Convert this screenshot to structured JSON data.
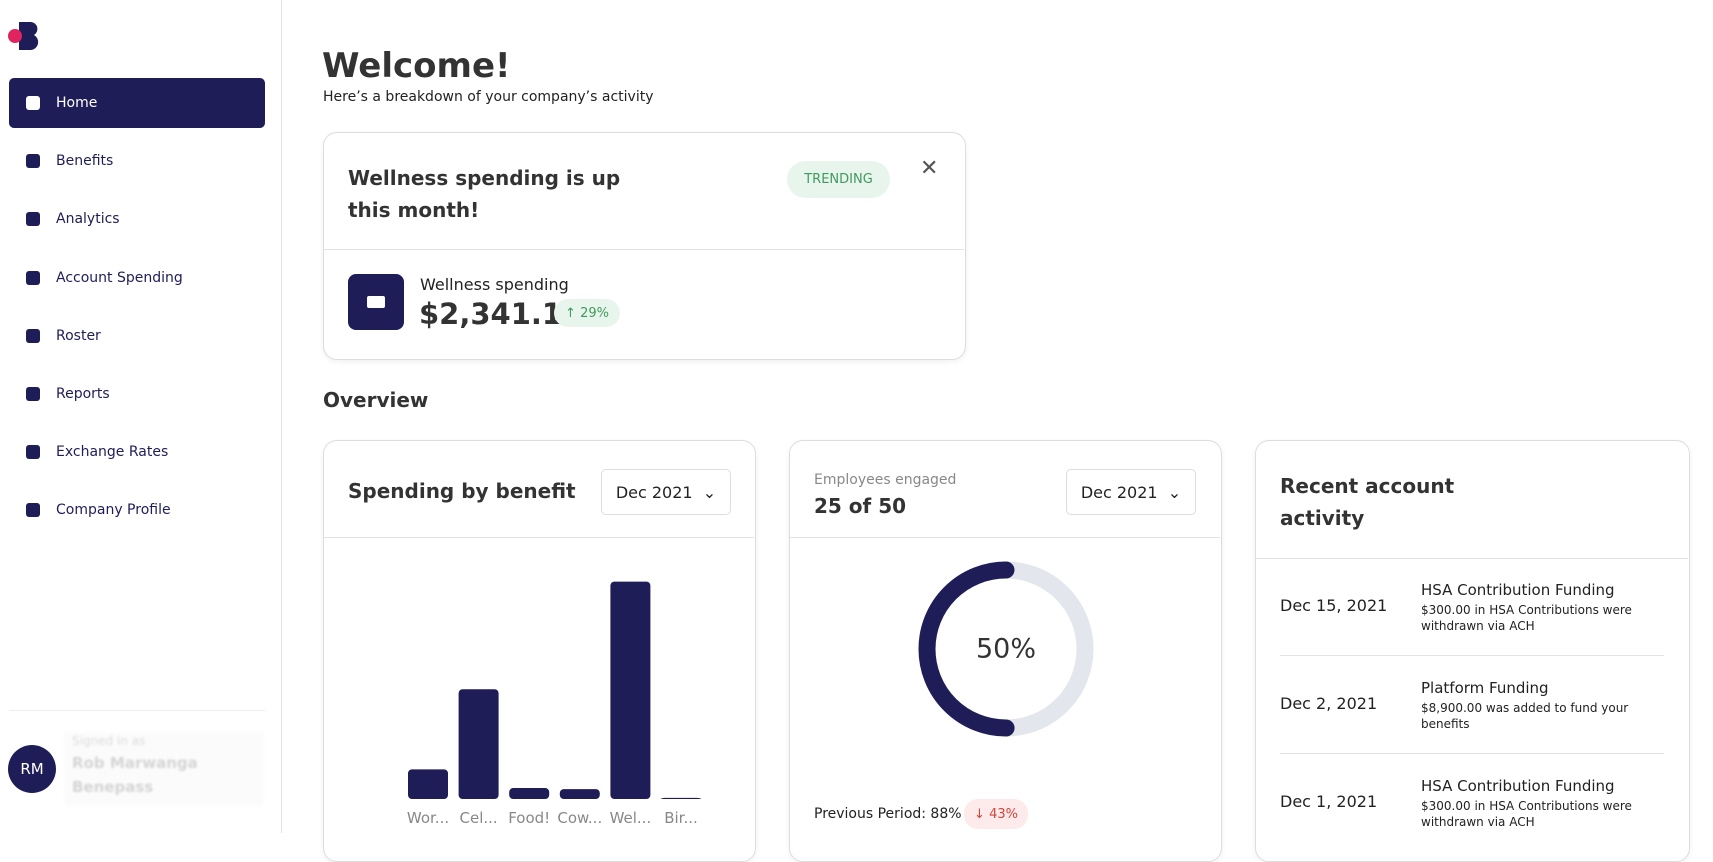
{
  "nav": {
    "items": [
      "Home",
      "Benefits",
      "Analytics",
      "Account Spending",
      "Roster",
      "Reports",
      "Exchange Rates",
      "Company Profile"
    ],
    "user": {
      "initials": "RM",
      "signed_in": "Signed in as",
      "name": "Rob Marwanga",
      "company": "Benepass"
    }
  },
  "header": {
    "title": "Welcome!",
    "subtitle": "Here’s a breakdown of your company’s activity"
  },
  "alert": {
    "title": "Wellness spending is up this month!",
    "badge": "TRENDING",
    "metric_label": "Wellness spending",
    "metric_value": "$2,341.10",
    "change": "29%"
  },
  "overview": {
    "title": "Overview",
    "spending_by_benefit": {
      "title": "Spending by benefit",
      "period": "Dec 2021",
      "categories": [
        "Wor...",
        "Cel...",
        "Food!",
        "Cow...",
        "Wel...",
        "Bir..."
      ],
      "values": [
        27,
        100,
        10,
        9,
        198,
        1
      ]
    },
    "engagement": {
      "label": "Employees engaged",
      "count": "25 of 50",
      "period": "Dec 2021",
      "percent": {
        "value": 50,
        "label": "50%"
      },
      "previous": "Previous Period: 88%",
      "change": "43%"
    },
    "activity": {
      "title": "Recent account activity",
      "rows": [
        [
          "Dec 15, 2021",
          "HSA Contribution Funding",
          "$300.00 in HSA Contributions were withdrawn via ACH"
        ],
        [
          "Dec 2, 2021",
          "Platform Funding",
          "$8,900.00 was added to fund your benefits"
        ],
        [
          "Dec 1, 2021",
          "HSA Contribution Funding",
          "$300.00 in HSA Contributions were withdrawn via ACH"
        ]
      ]
    }
  }
}
